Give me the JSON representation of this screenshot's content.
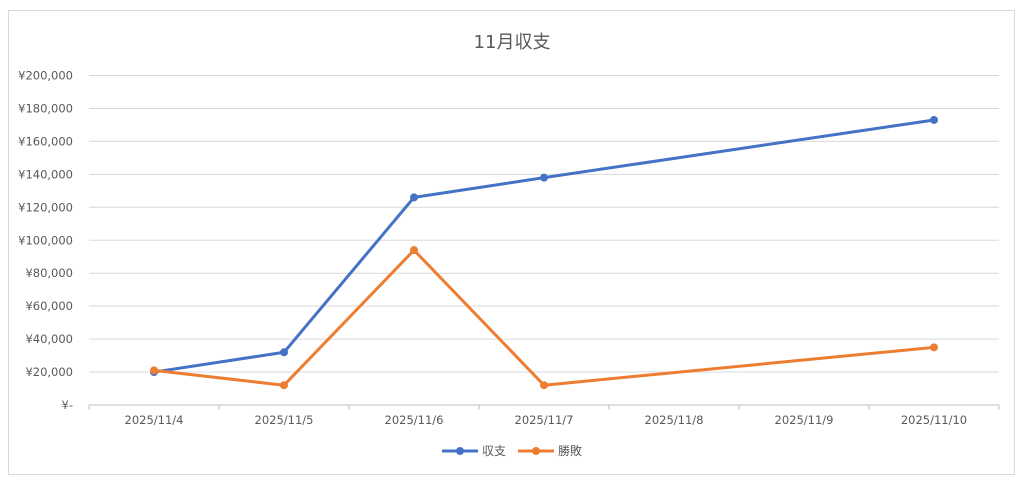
{
  "chart_data": {
    "type": "line",
    "title": "11月収支",
    "categories": [
      "2025/11/4",
      "2025/11/5",
      "2025/11/6",
      "2025/11/7",
      "2025/11/8",
      "2025/11/9",
      "2025/11/10"
    ],
    "series": [
      {
        "name": "収支",
        "color": "#4472C4",
        "values": [
          20000,
          32000,
          126000,
          138000,
          null,
          null,
          173000
        ]
      },
      {
        "name": "勝敗",
        "color": "#ED7D31",
        "values": [
          21000,
          12000,
          94000,
          12000,
          null,
          null,
          35000
        ]
      }
    ],
    "ylim": [
      0,
      200000
    ],
    "yticks": [
      0,
      20000,
      40000,
      60000,
      80000,
      100000,
      120000,
      140000,
      160000,
      180000,
      200000
    ],
    "ytick_labels": [
      "¥-",
      "¥20,000",
      "¥40,000",
      "¥60,000",
      "¥80,000",
      "¥100,000",
      "¥120,000",
      "¥140,000",
      "¥160,000",
      "¥180,000",
      "¥200,000"
    ],
    "grid": true,
    "legend": "bottom",
    "xlabel": "",
    "ylabel": ""
  }
}
